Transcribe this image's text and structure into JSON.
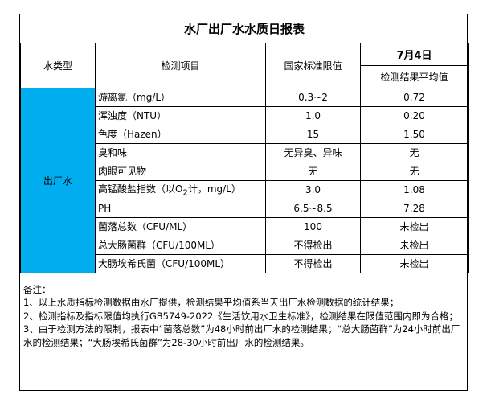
{
  "title": "水厂出厂水水质日报表",
  "headers": {
    "type": "水类型",
    "item": "检测项目",
    "limit": "国家标准限值",
    "date": "7月4日",
    "result": "检测结果平均值"
  },
  "water_type": "出厂水",
  "rows": [
    {
      "item": "游离氯（mg/L）",
      "limit": "0.3~2",
      "result": "0.72"
    },
    {
      "item": "浑浊度（NTU）",
      "limit": "1.0",
      "result": "0.20"
    },
    {
      "item": "色度（Hazen）",
      "limit": "15",
      "result": "1.50"
    },
    {
      "item": "臭和味",
      "limit": "无异臭、异味",
      "result": "无"
    },
    {
      "item": "肉眼可见物",
      "limit": "无",
      "result": "无"
    },
    {
      "item_pre": "高锰酸盐指数（以O",
      "item_sub": "2",
      "item_post": "计，mg/L）",
      "limit": "3.0",
      "result": "1.08"
    },
    {
      "item": "PH",
      "limit": "6.5~8.5",
      "result": "7.28"
    },
    {
      "item": "菌落总数（CFU/ML）",
      "limit": "100",
      "result": "未检出"
    },
    {
      "item": "总大肠菌群（CFU/100ML）",
      "limit": "不得检出",
      "result": "未检出"
    },
    {
      "item": "大肠埃希氏菌（CFU/100ML）",
      "limit": "不得检出",
      "result": "未检出"
    }
  ],
  "notes": [
    "备注：",
    "1、以上水质指标检测数据由水厂提供，检测结果平均值系当天出厂水检测数据的统计结果；",
    "2、检测指标及指标限值均执行GB5749-2022《生活饮用水卫生标准》，检测结果在限值范围内即为合格；",
    "3、由于检测方法的限制，报表中“菌落总数”为48小时前出厂水的检测结果；“总大肠菌群”为24小时前出厂水的检测结果；“大肠埃希氏菌群”为28-30小时前出厂水的检测结果。"
  ],
  "colors": {
    "type_cell": "#00AEEF"
  }
}
